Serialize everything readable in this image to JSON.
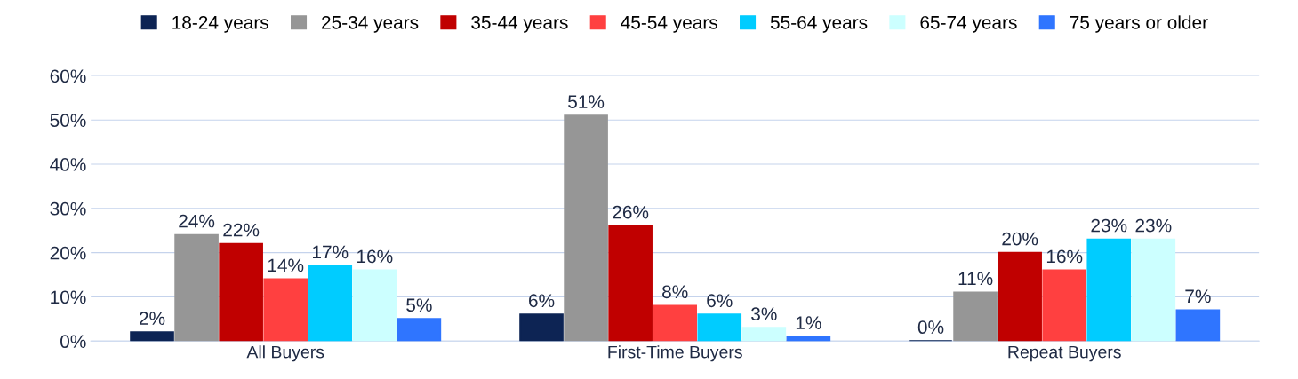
{
  "chart_data": {
    "type": "bar",
    "categories": [
      "All Buyers",
      "First-Time Buyers",
      "Repeat Buyers"
    ],
    "series": [
      {
        "name": "18-24 years",
        "color": "#0d2454",
        "values": [
          2,
          6,
          0
        ],
        "value_labels": [
          "2%",
          "6%",
          "0%"
        ]
      },
      {
        "name": "25-34 years",
        "color": "#969696",
        "values": [
          24,
          51,
          11
        ],
        "value_labels": [
          "24%",
          "51%",
          "11%"
        ]
      },
      {
        "name": "35-44 years",
        "color": "#c00000",
        "values": [
          22,
          26,
          20
        ],
        "value_labels": [
          "22%",
          "26%",
          "20%"
        ]
      },
      {
        "name": "45-54 years",
        "color": "#ff4040",
        "values": [
          14,
          8,
          16
        ],
        "value_labels": [
          "14%",
          "8%",
          "16%"
        ]
      },
      {
        "name": "55-64 years",
        "color": "#00ccff",
        "values": [
          17,
          6,
          23
        ],
        "value_labels": [
          "17%",
          "6%",
          "23%"
        ]
      },
      {
        "name": "65-74 years",
        "color": "#ccffff",
        "values": [
          16,
          3,
          23
        ],
        "value_labels": [
          "16%",
          "3%",
          "23%"
        ]
      },
      {
        "name": "75 years or older",
        "color": "#2f75ff",
        "values": [
          5,
          1,
          7
        ],
        "value_labels": [
          "5%",
          "1%",
          "7%"
        ]
      }
    ],
    "ylim": [
      0,
      60
    ],
    "yticks": [
      {
        "value": 0,
        "label": "0%"
      },
      {
        "value": 10,
        "label": "10%"
      },
      {
        "value": 20,
        "label": "20%"
      },
      {
        "value": 30,
        "label": "30%"
      },
      {
        "value": 40,
        "label": "40%"
      },
      {
        "value": 50,
        "label": "50%"
      },
      {
        "value": 60,
        "label": "60%"
      }
    ],
    "grid": "y",
    "legend": "top"
  }
}
